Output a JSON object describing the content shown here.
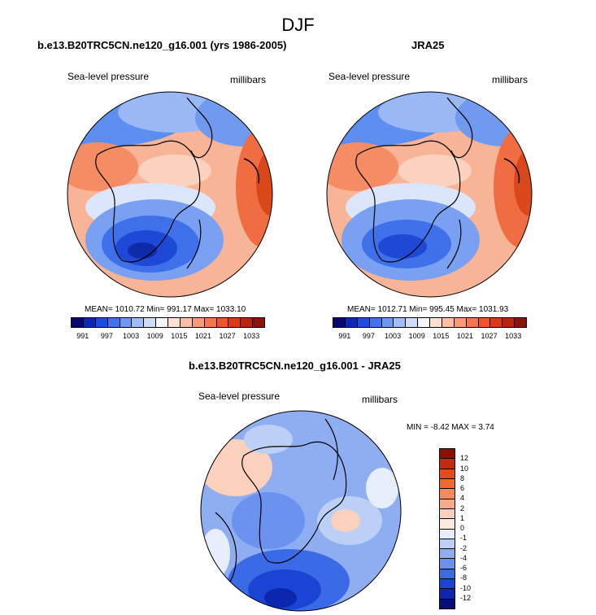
{
  "main_title": "DJF",
  "panels": [
    {
      "title": "b.e13.B20TRC5CN.ne120_g16.001 (yrs 1986-2005)",
      "left_label": "Sea-level pressure",
      "right_label": "millibars",
      "stats": "MEAN= 1010.72  Min= 991.17  Max= 1033.10"
    },
    {
      "title": "JRA25",
      "left_label": "Sea-level pressure",
      "right_label": "millibars",
      "stats": "MEAN= 1012.71  Min= 995.45  Max= 1031.93"
    },
    {
      "title": "b.e13.B20TRC5CN.ne120_g16.001 - JRA25",
      "left_label": "Sea-level pressure",
      "right_label": "millibars",
      "stats": "MIN =  -8.42 MAX =   3.74"
    }
  ],
  "abs_colorbar": {
    "ticks": [
      "991",
      "997",
      "1003",
      "1009",
      "1015",
      "1021",
      "1027",
      "1033"
    ],
    "colors": [
      "#08086e",
      "#0a28b5",
      "#1b4ee0",
      "#3f73ee",
      "#6d98f2",
      "#9fbcf5",
      "#cfdcf8",
      "#f5f5f5",
      "#fde0d2",
      "#fbbfa3",
      "#f89a74",
      "#f4764b",
      "#ee5528",
      "#d93a12",
      "#b8250a",
      "#8a1405"
    ]
  },
  "diff_colorbar": {
    "ticks": [
      "12",
      "10",
      "8",
      "6",
      "4",
      "2",
      "1",
      "0",
      "-1",
      "-2",
      "-4",
      "-6",
      "-8",
      "-10",
      "-12"
    ],
    "colors": [
      "#8b1000",
      "#c42a0c",
      "#e44a1c",
      "#f2692e",
      "#f58a5a",
      "#f8ab88",
      "#fbd0bc",
      "#fde9de",
      "#e7eefb",
      "#bcd0f6",
      "#8eaef1",
      "#6a92ee",
      "#3a6ae6",
      "#1a45d4",
      "#0c26ad",
      "#07107a"
    ]
  }
}
